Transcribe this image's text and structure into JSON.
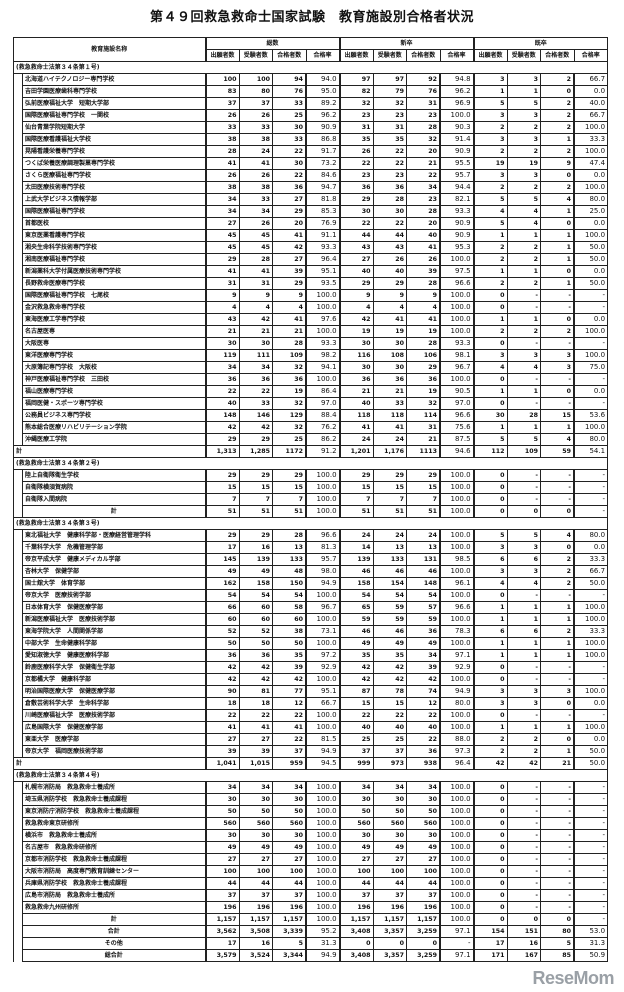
{
  "title": "第４９回救急救命士国家試験　教育施設別合格者状況",
  "header": {
    "name_col": "教育施設名称",
    "groups": [
      "総数",
      "新卒",
      "既卒"
    ],
    "subcols": [
      "出願者数",
      "受験者数",
      "合格者数",
      "合格率"
    ]
  },
  "sections": [
    {
      "label": "(救急救命士法第３４条第１号)",
      "rows": [
        [
          "北海道ハイテクノロジー専門学校",
          "100",
          "100",
          "94",
          "94.0",
          "97",
          "97",
          "92",
          "94.8",
          "3",
          "3",
          "2",
          "66.7"
        ],
        [
          "吉田学園医療歯科専門学校",
          "83",
          "80",
          "76",
          "95.0",
          "82",
          "79",
          "76",
          "96.2",
          "1",
          "1",
          "0",
          "0.0"
        ],
        [
          "弘前医療福祉大学　短期大学部",
          "37",
          "37",
          "33",
          "89.2",
          "32",
          "32",
          "31",
          "96.9",
          "5",
          "5",
          "2",
          "40.0"
        ],
        [
          "国際医療福祉専門学校　一関校",
          "26",
          "26",
          "25",
          "96.2",
          "23",
          "23",
          "23",
          "100.0",
          "3",
          "3",
          "2",
          "66.7"
        ],
        [
          "仙台青葉学院短期大学",
          "33",
          "33",
          "30",
          "90.9",
          "31",
          "31",
          "28",
          "90.3",
          "2",
          "2",
          "2",
          "100.0"
        ],
        [
          "国際医療看護福祉大学校",
          "38",
          "38",
          "33",
          "86.8",
          "35",
          "35",
          "32",
          "91.4",
          "3",
          "3",
          "1",
          "33.3"
        ],
        [
          "晃陽看護栄養専門学校",
          "28",
          "24",
          "22",
          "91.7",
          "26",
          "22",
          "20",
          "90.9",
          "2",
          "2",
          "2",
          "100.0"
        ],
        [
          "つくば栄養医療調理製菓専門学校",
          "41",
          "41",
          "30",
          "73.2",
          "22",
          "22",
          "21",
          "95.5",
          "19",
          "19",
          "9",
          "47.4"
        ],
        [
          "さくら医療福祉専門学校",
          "26",
          "26",
          "22",
          "84.6",
          "23",
          "23",
          "22",
          "95.7",
          "3",
          "3",
          "0",
          "0.0"
        ],
        [
          "太田医療技術専門学校",
          "38",
          "38",
          "36",
          "94.7",
          "36",
          "36",
          "34",
          "94.4",
          "2",
          "2",
          "2",
          "100.0"
        ],
        [
          "上武大学ビジネス情報学部",
          "34",
          "33",
          "27",
          "81.8",
          "29",
          "28",
          "23",
          "82.1",
          "5",
          "5",
          "4",
          "80.0"
        ],
        [
          "国際医療福祉専門学校",
          "34",
          "34",
          "29",
          "85.3",
          "30",
          "30",
          "28",
          "93.3",
          "4",
          "4",
          "1",
          "25.0"
        ],
        [
          "首都医校",
          "27",
          "26",
          "20",
          "76.9",
          "22",
          "22",
          "20",
          "90.9",
          "5",
          "4",
          "0",
          "0.0"
        ],
        [
          "東京医薬看護専門学校",
          "45",
          "45",
          "41",
          "91.1",
          "44",
          "44",
          "40",
          "90.9",
          "1",
          "1",
          "1",
          "100.0"
        ],
        [
          "湘央生命科学技術専門学校",
          "45",
          "45",
          "42",
          "93.3",
          "43",
          "43",
          "41",
          "95.3",
          "2",
          "2",
          "1",
          "50.0"
        ],
        [
          "湘南医療福祉専門学校",
          "29",
          "28",
          "27",
          "96.4",
          "27",
          "26",
          "26",
          "100.0",
          "2",
          "2",
          "1",
          "50.0"
        ],
        [
          "新潟薬科大学付属医療技術専門学校",
          "41",
          "41",
          "39",
          "95.1",
          "40",
          "40",
          "39",
          "97.5",
          "1",
          "1",
          "0",
          "0.0"
        ],
        [
          "長野救命医療専門学校",
          "31",
          "31",
          "29",
          "93.5",
          "29",
          "29",
          "28",
          "96.6",
          "2",
          "2",
          "1",
          "50.0"
        ],
        [
          "国際医療福祉専門学校　七尾校",
          "9",
          "9",
          "9",
          "100.0",
          "9",
          "9",
          "9",
          "100.0",
          "0",
          "-",
          "-",
          "-"
        ],
        [
          "金沢救急救命専門学校",
          "4",
          "4",
          "4",
          "100.0",
          "4",
          "4",
          "4",
          "100.0",
          "0",
          "-",
          "-",
          "-"
        ],
        [
          "東海医療工学専門学校",
          "43",
          "42",
          "41",
          "97.6",
          "42",
          "41",
          "41",
          "100.0",
          "1",
          "1",
          "0",
          "0.0"
        ],
        [
          "名古屋医専",
          "21",
          "21",
          "21",
          "100.0",
          "19",
          "19",
          "19",
          "100.0",
          "2",
          "2",
          "2",
          "100.0"
        ],
        [
          "大阪医専",
          "30",
          "30",
          "28",
          "93.3",
          "30",
          "30",
          "28",
          "93.3",
          "0",
          "-",
          "-",
          "-"
        ],
        [
          "東洋医療専門学校",
          "119",
          "111",
          "109",
          "98.2",
          "116",
          "108",
          "106",
          "98.1",
          "3",
          "3",
          "3",
          "100.0"
        ],
        [
          "大原簿記専門学校　大阪校",
          "34",
          "34",
          "32",
          "94.1",
          "30",
          "30",
          "29",
          "96.7",
          "4",
          "4",
          "3",
          "75.0"
        ],
        [
          "神戸医療福祉専門学校　三田校",
          "36",
          "36",
          "36",
          "100.0",
          "36",
          "36",
          "36",
          "100.0",
          "0",
          "-",
          "-",
          "-"
        ],
        [
          "福山医療専門学校",
          "22",
          "22",
          "19",
          "86.4",
          "21",
          "21",
          "19",
          "90.5",
          "1",
          "1",
          "0",
          "0.0"
        ],
        [
          "福岡医健・スポーツ専門学校",
          "40",
          "33",
          "32",
          "97.0",
          "40",
          "33",
          "32",
          "97.0",
          "0",
          "-",
          "-",
          "-"
        ],
        [
          "公務員ビジネス専門学校",
          "148",
          "146",
          "129",
          "88.4",
          "118",
          "118",
          "114",
          "96.6",
          "30",
          "28",
          "15",
          "53.6"
        ],
        [
          "熊本総合医療リハビリテーション学院",
          "42",
          "42",
          "32",
          "76.2",
          "41",
          "41",
          "31",
          "75.6",
          "1",
          "1",
          "1",
          "100.0"
        ],
        [
          "沖縄医療工学院",
          "29",
          "29",
          "25",
          "86.2",
          "24",
          "24",
          "21",
          "87.5",
          "5",
          "5",
          "4",
          "80.0"
        ]
      ],
      "total": [
        "計",
        "1,313",
        "1,285",
        "1172",
        "91.2",
        "1,201",
        "1,176",
        "1113",
        "94.6",
        "112",
        "109",
        "59",
        "54.1"
      ]
    },
    {
      "label": "(救急救命士法第３４条第２号)",
      "rows": [
        [
          "陸上自衛隊衛生学校",
          "29",
          "29",
          "29",
          "100.0",
          "29",
          "29",
          "29",
          "100.0",
          "0",
          "-",
          "-",
          "-"
        ],
        [
          "自衛隊横須賀病院",
          "15",
          "15",
          "15",
          "100.0",
          "15",
          "15",
          "15",
          "100.0",
          "0",
          "-",
          "-",
          "-"
        ],
        [
          "自衛隊入間病院",
          "7",
          "7",
          "7",
          "100.0",
          "7",
          "7",
          "7",
          "100.0",
          "0",
          "-",
          "-",
          "-"
        ]
      ],
      "total": [
        "計",
        "51",
        "51",
        "51",
        "100.0",
        "51",
        "51",
        "51",
        "100.0",
        "0",
        "0",
        "0",
        "-"
      ]
    },
    {
      "label": "(救急救命士法第３４条第３号)",
      "rows": [
        [
          "東北福祉大学　健康科学部・医療経営管理学科",
          "29",
          "29",
          "28",
          "96.6",
          "24",
          "24",
          "24",
          "100.0",
          "5",
          "5",
          "4",
          "80.0"
        ],
        [
          "千葉科学大学　危機管理学部",
          "17",
          "16",
          "13",
          "81.3",
          "14",
          "13",
          "13",
          "100.0",
          "3",
          "3",
          "0",
          "0.0"
        ],
        [
          "帝京平成大学　健康メディカル学部",
          "145",
          "139",
          "133",
          "95.7",
          "139",
          "133",
          "131",
          "98.5",
          "6",
          "6",
          "2",
          "33.3"
        ],
        [
          "杏林大学　保健学部",
          "49",
          "49",
          "48",
          "98.0",
          "46",
          "46",
          "46",
          "100.0",
          "3",
          "3",
          "2",
          "66.7"
        ],
        [
          "国士舘大学　体育学部",
          "162",
          "158",
          "150",
          "94.9",
          "158",
          "154",
          "148",
          "96.1",
          "4",
          "4",
          "2",
          "50.0"
        ],
        [
          "帝京大学　医療技術学部",
          "54",
          "54",
          "54",
          "100.0",
          "54",
          "54",
          "54",
          "100.0",
          "0",
          "-",
          "-",
          "-"
        ],
        [
          "日本体育大学　保健医療学部",
          "66",
          "60",
          "58",
          "96.7",
          "65",
          "59",
          "57",
          "96.6",
          "1",
          "1",
          "1",
          "100.0"
        ],
        [
          "新潟医療福祉大学　医療技術学部",
          "60",
          "60",
          "60",
          "100.0",
          "59",
          "59",
          "59",
          "100.0",
          "1",
          "1",
          "1",
          "100.0"
        ],
        [
          "東海学院大学　人間関係学部",
          "52",
          "52",
          "38",
          "73.1",
          "46",
          "46",
          "36",
          "78.3",
          "6",
          "6",
          "2",
          "33.3"
        ],
        [
          "中部大学　生命健康科学部",
          "50",
          "50",
          "50",
          "100.0",
          "49",
          "49",
          "49",
          "100.0",
          "1",
          "1",
          "1",
          "100.0"
        ],
        [
          "愛知淑徳大学　健康医療科学部",
          "36",
          "36",
          "35",
          "97.2",
          "35",
          "35",
          "34",
          "97.1",
          "1",
          "1",
          "1",
          "100.0"
        ],
        [
          "鈴鹿医療科学大学　保健衛生学部",
          "42",
          "42",
          "39",
          "92.9",
          "42",
          "42",
          "39",
          "92.9",
          "0",
          "-",
          "-",
          "-"
        ],
        [
          "京都橘大学　健康科学部",
          "42",
          "42",
          "42",
          "100.0",
          "42",
          "42",
          "42",
          "100.0",
          "0",
          "-",
          "-",
          "-"
        ],
        [
          "明治国際医療大学　保健医療学部",
          "90",
          "81",
          "77",
          "95.1",
          "87",
          "78",
          "74",
          "94.9",
          "3",
          "3",
          "3",
          "100.0"
        ],
        [
          "倉敷芸術科学大学　生命科学部",
          "18",
          "18",
          "12",
          "66.7",
          "15",
          "15",
          "12",
          "80.0",
          "3",
          "3",
          "0",
          "0.0"
        ],
        [
          "川崎医療福祉大学　医療技術学部",
          "22",
          "22",
          "22",
          "100.0",
          "22",
          "22",
          "22",
          "100.0",
          "0",
          "-",
          "-",
          "-"
        ],
        [
          "広島国際大学　保健医療学部",
          "41",
          "41",
          "41",
          "100.0",
          "40",
          "40",
          "40",
          "100.0",
          "1",
          "1",
          "1",
          "100.0"
        ],
        [
          "東亜大学　医療学部",
          "27",
          "27",
          "22",
          "81.5",
          "25",
          "25",
          "22",
          "88.0",
          "2",
          "2",
          "0",
          "0.0"
        ],
        [
          "帝京大学　福岡医療技術学部",
          "39",
          "39",
          "37",
          "94.9",
          "37",
          "37",
          "36",
          "97.3",
          "2",
          "2",
          "1",
          "50.0"
        ]
      ],
      "total": [
        "計",
        "1,041",
        "1,015",
        "959",
        "94.5",
        "999",
        "973",
        "938",
        "96.4",
        "42",
        "42",
        "21",
        "50.0"
      ]
    },
    {
      "label": "(救急救命士法第３４条第４号)",
      "rows": [
        [
          "札幌市消防局　救急救命士養成所",
          "34",
          "34",
          "34",
          "100.0",
          "34",
          "34",
          "34",
          "100.0",
          "0",
          "-",
          "-",
          "-"
        ],
        [
          "埼玉県消防学校　救急救命士養成課程",
          "30",
          "30",
          "30",
          "100.0",
          "30",
          "30",
          "30",
          "100.0",
          "0",
          "-",
          "-",
          "-"
        ],
        [
          "東京消防庁消防学校　救急救命士養成課程",
          "50",
          "50",
          "50",
          "100.0",
          "50",
          "50",
          "50",
          "100.0",
          "0",
          "-",
          "-",
          "-"
        ],
        [
          "救急救命東京研修所",
          "560",
          "560",
          "560",
          "100.0",
          "560",
          "560",
          "560",
          "100.0",
          "0",
          "-",
          "-",
          "-"
        ],
        [
          "横浜市　救急救命士養成所",
          "30",
          "30",
          "30",
          "100.0",
          "30",
          "30",
          "30",
          "100.0",
          "0",
          "-",
          "-",
          "-"
        ],
        [
          "名古屋市　救急救命研修所",
          "49",
          "49",
          "49",
          "100.0",
          "49",
          "49",
          "49",
          "100.0",
          "0",
          "-",
          "-",
          "-"
        ],
        [
          "京都市消防学校　救急救命士養成課程",
          "27",
          "27",
          "27",
          "100.0",
          "27",
          "27",
          "27",
          "100.0",
          "0",
          "-",
          "-",
          "-"
        ],
        [
          "大阪市消防局　高度専門教育訓練センター",
          "100",
          "100",
          "100",
          "100.0",
          "100",
          "100",
          "100",
          "100.0",
          "0",
          "-",
          "-",
          "-"
        ],
        [
          "兵庫県消防学校　救急救命士養成課程",
          "44",
          "44",
          "44",
          "100.0",
          "44",
          "44",
          "44",
          "100.0",
          "0",
          "-",
          "-",
          "-"
        ],
        [
          "広島市消防局　救急救命士養成所",
          "37",
          "37",
          "37",
          "100.0",
          "37",
          "37",
          "37",
          "100.0",
          "0",
          "-",
          "-",
          "-"
        ],
        [
          "救急救命九州研修所",
          "196",
          "196",
          "196",
          "100.0",
          "196",
          "196",
          "196",
          "100.0",
          "0",
          "-",
          "-",
          "-"
        ]
      ],
      "total": [
        "計",
        "1,157",
        "1,157",
        "1,157",
        "100.0",
        "1,157",
        "1,157",
        "1,157",
        "100.0",
        "0",
        "0",
        "0",
        "-"
      ]
    }
  ],
  "grand_rows": [
    [
      "合計",
      "3,562",
      "3,508",
      "3,339",
      "95.2",
      "3,408",
      "3,357",
      "3,259",
      "97.1",
      "154",
      "151",
      "80",
      "53.0"
    ],
    [
      "その他",
      "17",
      "16",
      "5",
      "31.3",
      "0",
      "0",
      "0",
      "-",
      "17",
      "16",
      "5",
      "31.3"
    ],
    [
      "総合計",
      "3,579",
      "3,524",
      "3,344",
      "94.9",
      "3,408",
      "3,357",
      "3,259",
      "97.1",
      "171",
      "167",
      "85",
      "50.9"
    ]
  ],
  "watermark": "ReseMom"
}
